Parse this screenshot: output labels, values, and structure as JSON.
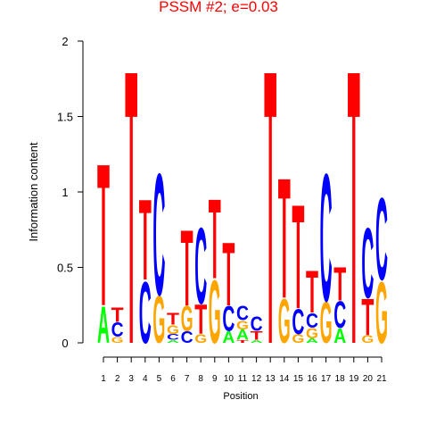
{
  "chart_data": {
    "type": "logo",
    "title": "PSSM #2; e=0.03",
    "xlabel": "Position",
    "ylabel": "Information content",
    "ylim": [
      0,
      2
    ],
    "yticks": [
      0,
      0.5,
      1,
      1.5,
      2
    ],
    "categories": [
      "1",
      "2",
      "3",
      "4",
      "5",
      "6",
      "7",
      "8",
      "9",
      "10",
      "11",
      "12",
      "13",
      "14",
      "15",
      "16",
      "17",
      "18",
      "19",
      "20",
      "21"
    ],
    "colors": {
      "A": "#00ff00",
      "C": "#0000ff",
      "G": "#ffa500",
      "T": "#ff0000"
    },
    "title_color": "#ff0000",
    "stacks": [
      {
        "letters": [
          "A",
          "T"
        ],
        "values": [
          0.25,
          0.97
        ]
      },
      {
        "letters": [
          "G",
          "C",
          "T"
        ],
        "values": [
          0.04,
          0.1,
          0.1
        ]
      },
      {
        "letters": [
          "T"
        ],
        "values": [
          1.87
        ]
      },
      {
        "letters": [
          "C",
          "T"
        ],
        "values": [
          0.42,
          0.55
        ]
      },
      {
        "letters": [
          "G",
          "C"
        ],
        "values": [
          0.32,
          0.83
        ]
      },
      {
        "letters": [
          "A",
          "C",
          "G",
          "T"
        ],
        "values": [
          0.02,
          0.04,
          0.06,
          0.08
        ]
      },
      {
        "letters": [
          "C",
          "G",
          "T"
        ],
        "values": [
          0.08,
          0.17,
          0.52
        ]
      },
      {
        "letters": [
          "G",
          "T",
          "C"
        ],
        "values": [
          0.06,
          0.2,
          0.52
        ]
      },
      {
        "letters": [
          "G",
          "T"
        ],
        "values": [
          0.43,
          0.54
        ]
      },
      {
        "letters": [
          "A",
          "C",
          "T"
        ],
        "values": [
          0.08,
          0.17,
          0.43
        ]
      },
      {
        "letters": [
          "T",
          "A",
          "G",
          "C"
        ],
        "values": [
          0.02,
          0.07,
          0.06,
          0.1
        ]
      },
      {
        "letters": [
          "A",
          "T",
          "C"
        ],
        "values": [
          0.02,
          0.06,
          0.1
        ]
      },
      {
        "letters": [
          "T"
        ],
        "values": [
          1.87
        ]
      },
      {
        "letters": [
          "G",
          "T"
        ],
        "values": [
          0.3,
          0.82
        ]
      },
      {
        "letters": [
          "G",
          "C",
          "T"
        ],
        "values": [
          0.06,
          0.17,
          0.71
        ]
      },
      {
        "letters": [
          "A",
          "G",
          "C",
          "T"
        ],
        "values": [
          0.03,
          0.07,
          0.1,
          0.29
        ]
      },
      {
        "letters": [
          "G",
          "C"
        ],
        "values": [
          0.28,
          0.87
        ]
      },
      {
        "letters": [
          "A",
          "C",
          "T"
        ],
        "values": [
          0.1,
          0.18,
          0.23
        ]
      },
      {
        "letters": [
          "T"
        ],
        "values": [
          1.87
        ]
      },
      {
        "letters": [
          "G",
          "T",
          "C"
        ],
        "values": [
          0.05,
          0.25,
          0.48
        ]
      },
      {
        "letters": [
          "G",
          "C"
        ],
        "values": [
          0.42,
          0.56
        ]
      }
    ]
  }
}
